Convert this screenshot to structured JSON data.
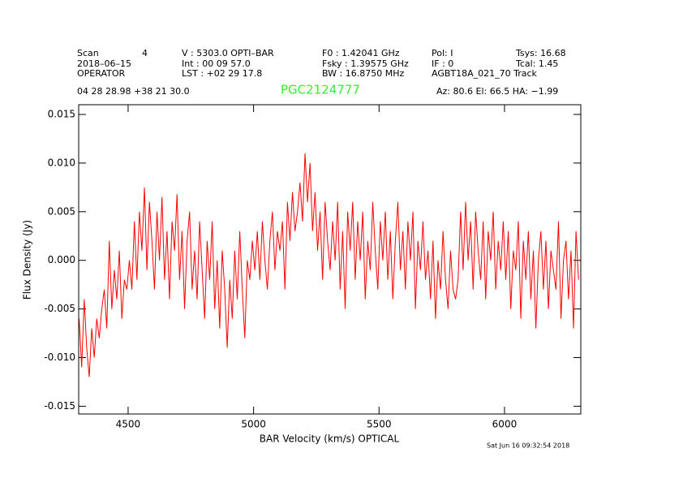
{
  "chart_data": {
    "type": "line",
    "header": [
      [
        "Scan",
        "4",
        "V   :     5303.0 OPTI–BAR",
        "F0   :    1.42041 GHz",
        "Pol:     I",
        "Tsys:    16.68"
      ],
      [
        "2018–06–15",
        "Int   :   00 09 57.0",
        "Fsky :    1.39575 GHz",
        "IF :      0",
        "Tcal:      1.45"
      ],
      [
        "OPERATOR",
        "LST : +02 29 17.8",
        "BW    :   16.8750 MHz",
        "AGBT18A_021_70 Track"
      ]
    ],
    "coords": "04 28 28.98   +38 21 30.0",
    "title": "PGC2124777",
    "pointing": "Az:   80.6   El:   66.5   HA: −1.99",
    "footer": "Sat Jun 16 09:32:54 2018",
    "xlabel": "BAR Velocity (km/s) OPTICAL",
    "ylabel": "Flux Density (Jy)",
    "color": "#ff0000",
    "title_color": "#33ee33",
    "xlim": [
      4303,
      6304
    ],
    "ylim": [
      -0.0158,
      0.016
    ],
    "xticks": [
      4500,
      5000,
      5500,
      6000
    ],
    "yticks": [
      {
        "value": -0.015,
        "label": "-0.015"
      },
      {
        "value": -0.01,
        "label": "-0.010"
      },
      -0.005,
      {
        "value": 0,
        "label": "0.000"
      },
      0.005,
      {
        "value": 0.01,
        "label": "0.010"
      },
      0.015
    ],
    "x": [
      4305,
      4315,
      4325,
      4335,
      4345,
      4355,
      4365,
      4375,
      4385,
      4395,
      4405,
      4415,
      4425,
      4435,
      4445,
      4455,
      4465,
      4475,
      4485,
      4495,
      4505,
      4515,
      4525,
      4535,
      4545,
      4555,
      4565,
      4575,
      4585,
      4595,
      4605,
      4615,
      4625,
      4635,
      4645,
      4655,
      4665,
      4675,
      4685,
      4695,
      4705,
      4715,
      4725,
      4735,
      4745,
      4755,
      4765,
      4775,
      4785,
      4795,
      4805,
      4815,
      4825,
      4835,
      4845,
      4855,
      4865,
      4875,
      4885,
      4895,
      4905,
      4915,
      4925,
      4935,
      4945,
      4955,
      4965,
      4975,
      4985,
      4995,
      5005,
      5015,
      5025,
      5035,
      5045,
      5055,
      5065,
      5075,
      5085,
      5095,
      5105,
      5115,
      5125,
      5135,
      5145,
      5155,
      5165,
      5175,
      5185,
      5195,
      5205,
      5215,
      5225,
      5235,
      5245,
      5255,
      5265,
      5275,
      5285,
      5295,
      5305,
      5315,
      5325,
      5335,
      5345,
      5355,
      5365,
      5375,
      5385,
      5395,
      5405,
      5415,
      5425,
      5435,
      5445,
      5455,
      5465,
      5475,
      5485,
      5495,
      5505,
      5515,
      5525,
      5535,
      5545,
      5555,
      5565,
      5575,
      5585,
      5595,
      5605,
      5615,
      5625,
      5635,
      5645,
      5655,
      5665,
      5675,
      5685,
      5695,
      5705,
      5715,
      5725,
      5735,
      5745,
      5755,
      5765,
      5775,
      5785,
      5795,
      5805,
      5815,
      5825,
      5835,
      5845,
      5855,
      5865,
      5875,
      5885,
      5895,
      5905,
      5915,
      5925,
      5935,
      5945,
      5955,
      5965,
      5975,
      5985,
      5995,
      6005,
      6015,
      6025,
      6035,
      6045,
      6055,
      6065,
      6075,
      6085,
      6095,
      6105,
      6115,
      6125,
      6135,
      6145,
      6155,
      6165,
      6175,
      6185,
      6195,
      6205,
      6215,
      6225,
      6235,
      6245,
      6255,
      6265,
      6275,
      6285,
      6295
    ],
    "values": [
      -0.006,
      -0.011,
      -0.004,
      -0.009,
      -0.012,
      -0.007,
      -0.01,
      -0.006,
      -0.008,
      -0.005,
      -0.003,
      -0.007,
      0.002,
      -0.005,
      -0.001,
      -0.004,
      0.001,
      -0.006,
      -0.002,
      -0.003,
      0.0,
      -0.003,
      0.004,
      -0.002,
      0.005,
      0.001,
      0.0075,
      -0.001,
      0.006,
      0.002,
      -0.003,
      0.005,
      0.0,
      0.0065,
      -0.002,
      0.003,
      -0.004,
      0.004,
      0.001,
      0.0068,
      -0.002,
      0.003,
      -0.005,
      0.002,
      0.005,
      -0.003,
      0.001,
      -0.004,
      0.004,
      -0.001,
      -0.006,
      0.002,
      -0.002,
      0.004,
      -0.005,
      0.0,
      -0.007,
      0.001,
      -0.003,
      -0.009,
      -0.002,
      -0.006,
      0.001,
      -0.004,
      0.003,
      -0.003,
      -0.008,
      0.0,
      -0.002,
      0.002,
      -0.001,
      0.003,
      -0.002,
      0.004,
      0.0,
      -0.003,
      0.002,
      0.005,
      -0.001,
      0.003,
      0.001,
      0.004,
      -0.003,
      0.006,
      0.002,
      0.007,
      0.003,
      0.005,
      0.008,
      0.004,
      0.011,
      0.006,
      0.01,
      0.003,
      0.007,
      0.001,
      0.005,
      -0.002,
      0.006,
      0.002,
      -0.001,
      0.004,
      0.0,
      0.006,
      -0.003,
      0.003,
      -0.005,
      0.005,
      0.001,
      0.006,
      -0.002,
      0.004,
      0.0,
      0.005,
      -0.004,
      0.002,
      -0.001,
      0.006,
      0.001,
      -0.003,
      0.004,
      0.0,
      0.005,
      -0.002,
      0.003,
      -0.004,
      0.002,
      0.006,
      -0.001,
      0.003,
      -0.003,
      0.004,
      0.0,
      0.005,
      -0.005,
      0.002,
      -0.001,
      0.004,
      -0.002,
      0.001,
      -0.004,
      0.002,
      -0.006,
      0.0,
      -0.003,
      0.003,
      -0.002,
      -0.005,
      0.001,
      -0.003,
      -0.004,
      -0.002,
      0.005,
      -0.001,
      0.006,
      0.0,
      0.004,
      -0.003,
      0.005,
      0.001,
      -0.002,
      0.004,
      -0.004,
      0.003,
      0.0,
      0.005,
      -0.003,
      0.002,
      -0.001,
      0.004,
      -0.002,
      0.003,
      -0.005,
      0.001,
      -0.001,
      0.004,
      -0.006,
      0.002,
      -0.002,
      0.003,
      -0.004,
      0.001,
      -0.007,
      0.0,
      0.003,
      -0.003,
      0.002,
      -0.005,
      0.001,
      -0.001,
      -0.003,
      0.004,
      -0.006,
      0.0,
      0.002,
      -0.004,
      0.001,
      -0.007,
      0.003,
      -0.002
    ]
  }
}
